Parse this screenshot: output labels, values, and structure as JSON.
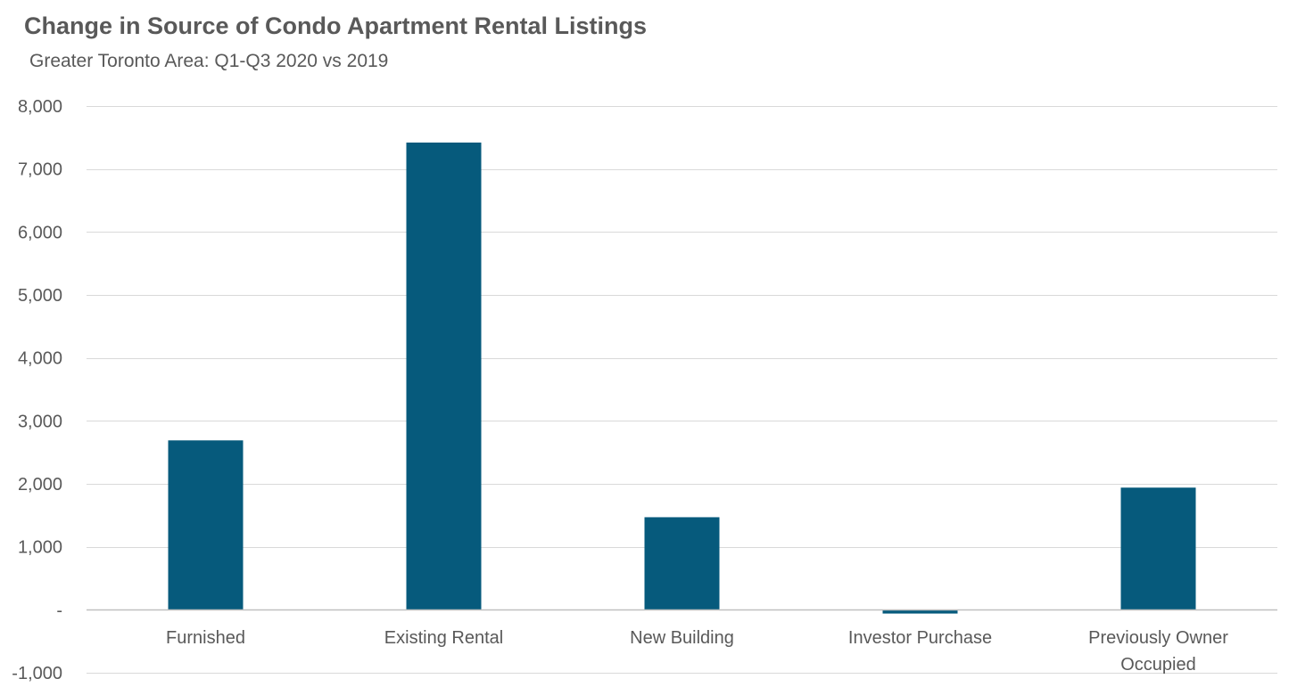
{
  "chart_data": {
    "type": "bar",
    "title": "Change in Source of Condo Apartment Rental Listings",
    "subtitle": "Greater Toronto Area: Q1-Q3 2020 vs 2019",
    "xlabel": "",
    "ylabel": "",
    "categories": [
      [
        "Furnished"
      ],
      [
        "Existing Rental"
      ],
      [
        "New Building"
      ],
      [
        "Investor Purchase"
      ],
      [
        "Previously Owner",
        "Occupied"
      ]
    ],
    "values": [
      2690,
      7420,
      1470,
      -60,
      1940
    ],
    "ylim": [
      -1000,
      8000
    ],
    "yticks": [
      -1000,
      0,
      1000,
      2000,
      3000,
      4000,
      5000,
      6000,
      7000,
      8000
    ],
    "ytick_labels": [
      "-1,000",
      "-",
      "1,000",
      "2,000",
      "3,000",
      "4,000",
      "5,000",
      "6,000",
      "7,000",
      "8,000"
    ],
    "grid": true,
    "legend": "none",
    "colors": {
      "bar": "#065a7c",
      "grid": "#d9d9d9",
      "text": "#595959"
    }
  }
}
